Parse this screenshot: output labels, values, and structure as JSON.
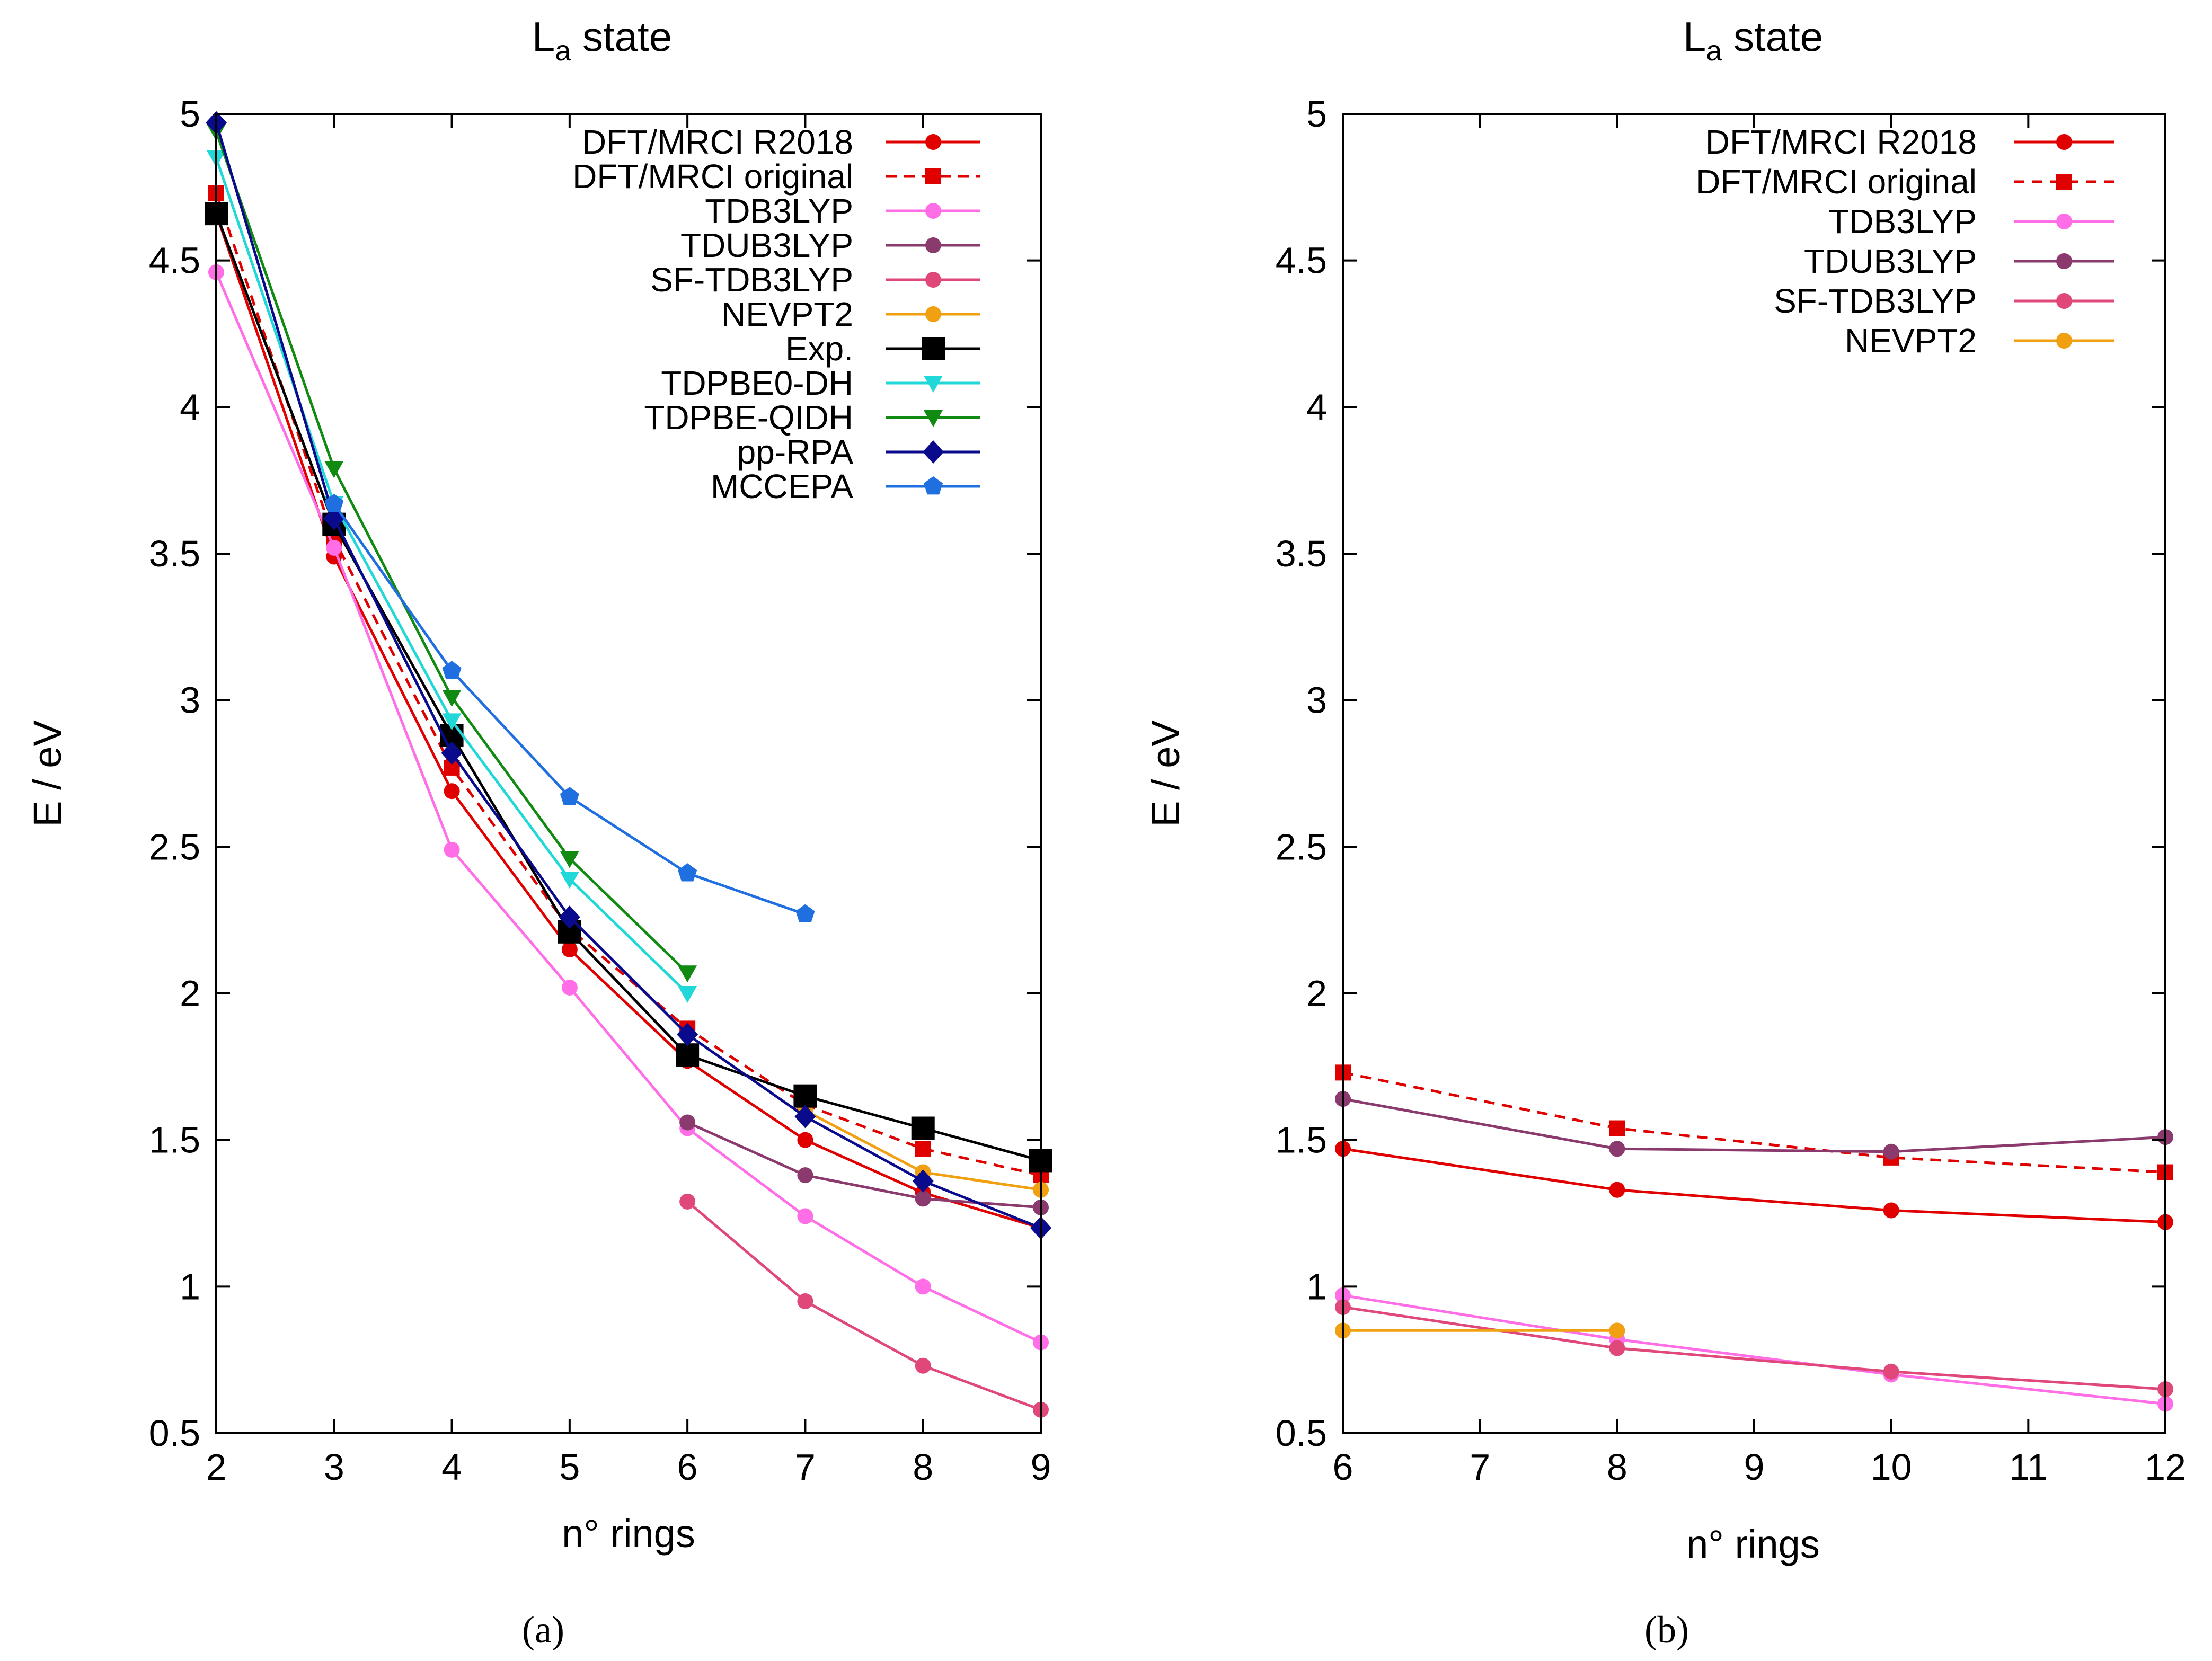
{
  "chart_data": [
    {
      "type": "line",
      "title_main": "L",
      "title_sub": "a",
      "title_rest": " state",
      "xlabel": "n° rings",
      "ylabel": "E / eV",
      "caption": "(a)",
      "xlim": [
        2,
        9
      ],
      "ylim": [
        0.5,
        5
      ],
      "xticks": [
        "2",
        "3",
        "4",
        "5",
        "6",
        "7",
        "8",
        "9"
      ],
      "yticks": [
        "0.5",
        "1",
        "1.5",
        "2",
        "2.5",
        "3",
        "3.5",
        "4",
        "4.5",
        "5"
      ],
      "legend_position": "top-right",
      "series": [
        {
          "name": "DFT/MRCI R2018",
          "color": "#e00000",
          "marker": "circle",
          "dash": false,
          "x": [
            2,
            3,
            4,
            5,
            6,
            7,
            8,
            9
          ],
          "y": [
            4.66,
            3.49,
            2.69,
            2.15,
            1.77,
            1.5,
            1.32,
            1.2
          ]
        },
        {
          "name": "DFT/MRCI original",
          "color": "#e00000",
          "marker": "square-small",
          "dash": true,
          "x": [
            2,
            3,
            4,
            5,
            6,
            7,
            8,
            9
          ],
          "y": [
            4.73,
            3.55,
            2.77,
            2.22,
            1.88,
            1.62,
            1.47,
            1.38
          ]
        },
        {
          "name": "TDB3LYP",
          "color": "#ff6ee6",
          "marker": "circle",
          "dash": false,
          "x": [
            2,
            3,
            4,
            5,
            6,
            7,
            8,
            9
          ],
          "y": [
            4.46,
            3.52,
            2.49,
            2.02,
            1.54,
            1.24,
            1.0,
            0.81
          ]
        },
        {
          "name": "TDUB3LYP",
          "color": "#8b3a6e",
          "marker": "circle",
          "dash": false,
          "x": [
            6,
            7,
            8,
            9
          ],
          "y": [
            1.56,
            1.38,
            1.3,
            1.27
          ]
        },
        {
          "name": "SF-TDB3LYP",
          "color": "#e0487a",
          "marker": "circle",
          "dash": false,
          "x": [
            6,
            7,
            8,
            9
          ],
          "y": [
            1.29,
            0.95,
            0.73,
            0.58
          ]
        },
        {
          "name": "NEVPT2",
          "color": "#f0a010",
          "marker": "circle",
          "dash": false,
          "x": [
            7,
            8,
            9
          ],
          "y": [
            1.6,
            1.39,
            1.33
          ]
        },
        {
          "name": "Exp.",
          "color": "#000000",
          "marker": "square",
          "dash": false,
          "x": [
            2,
            3,
            4,
            5,
            6,
            7,
            8,
            9
          ],
          "y": [
            4.66,
            3.6,
            2.88,
            2.21,
            1.79,
            1.65,
            1.54,
            1.43
          ]
        },
        {
          "name": "TDPBE0-DH",
          "color": "#20d8d8",
          "marker": "triangle-down",
          "dash": false,
          "x": [
            2,
            3,
            4,
            5,
            6
          ],
          "y": [
            4.85,
            3.67,
            2.93,
            2.39,
            2.0
          ]
        },
        {
          "name": "TDPBE-QIDH",
          "color": "#118a11",
          "marker": "triangle-down",
          "dash": false,
          "x": [
            2,
            3,
            4,
            5,
            6
          ],
          "y": [
            4.94,
            3.79,
            3.01,
            2.46,
            2.07
          ]
        },
        {
          "name": "pp-RPA",
          "color": "#0a0a8c",
          "marker": "diamond",
          "dash": false,
          "x": [
            2,
            3,
            4,
            5,
            6,
            7,
            8,
            9
          ],
          "y": [
            4.97,
            3.62,
            2.82,
            2.26,
            1.86,
            1.58,
            1.36,
            1.2
          ]
        },
        {
          "name": "MCCEPA",
          "color": "#1f6fe0",
          "marker": "pentagon",
          "dash": false,
          "x": [
            3,
            4,
            5,
            6,
            7
          ],
          "y": [
            3.67,
            3.1,
            2.67,
            2.41,
            2.27
          ]
        }
      ]
    },
    {
      "type": "line",
      "title_main": "L",
      "title_sub": "a",
      "title_rest": " state",
      "xlabel": "n° rings",
      "ylabel": "E / eV",
      "caption": "(b)",
      "xlim": [
        6,
        12
      ],
      "ylim": [
        0.5,
        5
      ],
      "xticks": [
        "6",
        "7",
        "8",
        "9",
        "10",
        "11",
        "12"
      ],
      "yticks": [
        "0.5",
        "1",
        "1.5",
        "2",
        "2.5",
        "3",
        "3.5",
        "4",
        "4.5",
        "5"
      ],
      "legend_position": "top-right",
      "series": [
        {
          "name": "DFT/MRCI R2018",
          "color": "#e00000",
          "marker": "circle",
          "dash": false,
          "x": [
            6,
            8,
            10,
            12
          ],
          "y": [
            1.47,
            1.33,
            1.26,
            1.22
          ]
        },
        {
          "name": "DFT/MRCI original",
          "color": "#e00000",
          "marker": "square-small",
          "dash": true,
          "x": [
            6,
            8,
            10,
            12
          ],
          "y": [
            1.73,
            1.54,
            1.44,
            1.39
          ]
        },
        {
          "name": "TDB3LYP",
          "color": "#ff6ee6",
          "marker": "circle",
          "dash": false,
          "x": [
            6,
            8,
            10,
            12
          ],
          "y": [
            0.97,
            0.82,
            0.7,
            0.6
          ]
        },
        {
          "name": "TDUB3LYP",
          "color": "#8b3a6e",
          "marker": "circle",
          "dash": false,
          "x": [
            6,
            8,
            10,
            12
          ],
          "y": [
            1.64,
            1.47,
            1.46,
            1.51
          ]
        },
        {
          "name": "SF-TDB3LYP",
          "color": "#e0487a",
          "marker": "circle",
          "dash": false,
          "x": [
            6,
            8,
            10,
            12
          ],
          "y": [
            0.93,
            0.79,
            0.71,
            0.65
          ]
        },
        {
          "name": "NEVPT2",
          "color": "#f0a010",
          "marker": "circle",
          "dash": false,
          "x": [
            6,
            8
          ],
          "y": [
            0.85,
            0.85
          ]
        }
      ]
    }
  ]
}
